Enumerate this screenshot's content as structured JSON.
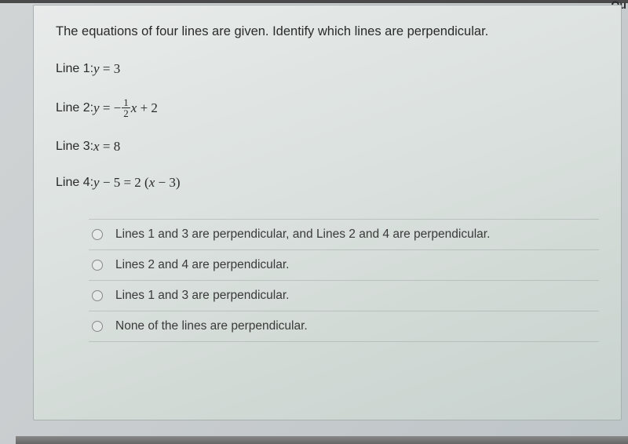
{
  "corner_text": "Qu",
  "question": "The equations of four lines are given. Identify which lines are perpendicular.",
  "lines": {
    "line1_label": "Line 1: ",
    "line1_eq_lhs": "y",
    "line1_eq_rhs": "3",
    "line2_label": "Line 2: ",
    "line2_eq_lhs": "y",
    "line2_eq_frac_num": "1",
    "line2_eq_frac_den": "2",
    "line2_eq_x": "x",
    "line2_eq_const": "2",
    "line3_label": "Line 3: ",
    "line3_eq_lhs": "x",
    "line3_eq_rhs": "8",
    "line4_label": "Line 4: ",
    "line4_eq_lhs_y": "y",
    "line4_eq_lhs_const": "5",
    "line4_eq_rhs_coef": "2",
    "line4_eq_rhs_x": "x",
    "line4_eq_rhs_const": "3"
  },
  "options": {
    "opt1": "Lines 1 and 3 are perpendicular, and Lines 2 and 4 are perpendicular.",
    "opt2": "Lines 2 and 4 are perpendicular.",
    "opt3": "Lines 1 and 3 are perpendicular.",
    "opt4": "None of the lines are perpendicular."
  },
  "colors": {
    "text": "#2a2a2a",
    "panel_bg_start": "#e8ebea",
    "panel_bg_end": "#c8d2ce",
    "body_bg": "#c8ccce",
    "border": "#a8b0b0",
    "divider": "rgba(160,168,168,0.5)",
    "radio_border": "#888888"
  },
  "typography": {
    "question_fontsize": 16.5,
    "equation_fontsize": 16,
    "option_fontsize": 15.5,
    "font_family": "Arial"
  }
}
